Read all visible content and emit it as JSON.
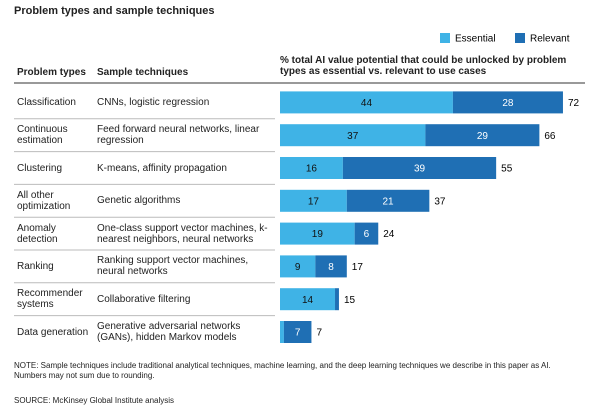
{
  "chart_data": {
    "type": "bar",
    "title": "Problem types and sample techniques",
    "column_headers": [
      "Problem types",
      "Sample techniques"
    ],
    "chart_header": "% total AI value potential that could be unlocked by problem types as essential vs. relevant to use cases",
    "categories": [
      "Classification",
      "Continuous estimation",
      "Clustering",
      "All other optimization",
      "Anomaly detection",
      "Ranking",
      "Recommender systems",
      "Data generation"
    ],
    "techniques": [
      "CNNs, logistic regression",
      "Feed forward neural networks, linear regression",
      "K-means, affinity propagation",
      "Genetic algorithms",
      "One-class support vector machines, k-nearest neighbors, neural networks",
      "Ranking support vector machines, neural networks",
      "Collaborative filtering",
      "Generative adversarial networks (GANs), hidden Markov models"
    ],
    "series": [
      {
        "name": "Essential",
        "color": "#3fb3e6",
        "values": [
          44,
          37,
          16,
          17,
          19,
          9,
          14,
          1
        ]
      },
      {
        "name": "Relevant",
        "color": "#1f6fb4",
        "values": [
          28,
          29,
          39,
          21,
          6,
          8,
          1,
          7
        ]
      }
    ],
    "totals": [
      72,
      66,
      55,
      37,
      24,
      17,
      15,
      7
    ],
    "note": "NOTE: Sample techniques include traditional analytical techniques, machine learning, and the deep learning techniques we describe in this paper as AI. Numbers may not sum due to rounding.",
    "source": "SOURCE: McKinsey Global Institute analysis"
  }
}
